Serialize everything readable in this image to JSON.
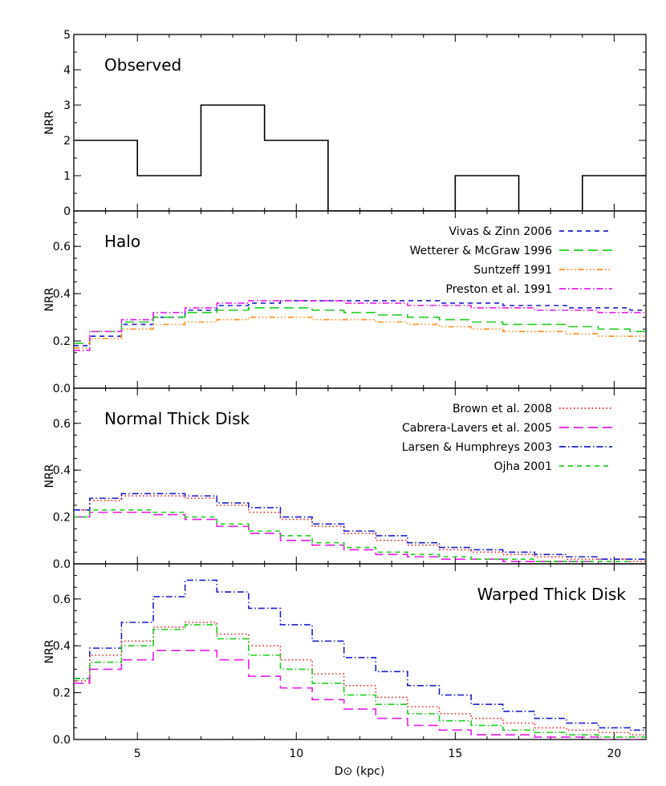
{
  "chart_data": [
    {
      "type": "line",
      "title": "Observed",
      "ylabel": "NRR",
      "xlim": [
        3,
        21
      ],
      "ylim": [
        0,
        5
      ],
      "yticks": [
        "0",
        "1",
        "2",
        "3",
        "4",
        "5"
      ],
      "series": [
        {
          "color": "#000000",
          "dash": "solid",
          "bins_x": [
            3,
            5,
            7,
            9,
            11,
            13,
            15,
            17,
            19,
            21
          ],
          "values": [
            2,
            1,
            3,
            2,
            0,
            0,
            1,
            0,
            1
          ]
        }
      ]
    },
    {
      "type": "line",
      "title": "Halo",
      "ylabel": "NRR",
      "xlim": [
        3,
        21
      ],
      "ylim": [
        0,
        0.75
      ],
      "yticks": [
        "0.0",
        "0.2",
        "0.4",
        "0.6"
      ],
      "legend_position": "top-right",
      "bins_x": [
        3,
        3.5,
        4.5,
        5.5,
        6.5,
        7.5,
        8.5,
        9.5,
        10.5,
        11.5,
        12.5,
        13.5,
        14.5,
        15.5,
        16.5,
        17.5,
        18.5,
        19.5,
        20.5,
        21
      ],
      "series": [
        {
          "name": "Vivas & Zinn 2006",
          "color": "#1f1fcc",
          "dash": "6,5",
          "values": [
            0.18,
            0.22,
            0.27,
            0.3,
            0.33,
            0.35,
            0.36,
            0.37,
            0.37,
            0.37,
            0.37,
            0.37,
            0.36,
            0.36,
            0.35,
            0.35,
            0.34,
            0.34,
            0.33
          ]
        },
        {
          "name": "Wetterer & McGraw 1996",
          "color": "#22cc22",
          "dash": "12,6",
          "values": [
            0.19,
            0.24,
            0.28,
            0.3,
            0.32,
            0.33,
            0.34,
            0.34,
            0.33,
            0.32,
            0.31,
            0.3,
            0.29,
            0.28,
            0.27,
            0.27,
            0.26,
            0.25,
            0.24
          ]
        },
        {
          "name": "Suntzeff 1991",
          "color": "#ff8c1a",
          "dash": "7,3,1.5,3,1.5,3,1.5,3",
          "values": [
            0.17,
            0.21,
            0.25,
            0.27,
            0.28,
            0.29,
            0.3,
            0.3,
            0.29,
            0.29,
            0.28,
            0.27,
            0.26,
            0.25,
            0.24,
            0.24,
            0.23,
            0.22,
            0.22
          ]
        },
        {
          "name": "Preston et al. 1991",
          "color": "#e61ee6",
          "dash": "8,3,1.5,3",
          "values": [
            0.16,
            0.24,
            0.29,
            0.32,
            0.34,
            0.36,
            0.37,
            0.37,
            0.37,
            0.36,
            0.36,
            0.35,
            0.35,
            0.34,
            0.34,
            0.33,
            0.33,
            0.32,
            0.32
          ]
        }
      ]
    },
    {
      "type": "line",
      "title": "Normal Thick Disk",
      "ylabel": "NRR",
      "xlim": [
        3,
        21
      ],
      "ylim": [
        0,
        0.75
      ],
      "yticks": [
        "0.0",
        "0.2",
        "0.4",
        "0.6"
      ],
      "legend_position": "top-right",
      "bins_x": [
        3,
        3.5,
        4.5,
        5.5,
        6.5,
        7.5,
        8.5,
        9.5,
        10.5,
        11.5,
        12.5,
        13.5,
        14.5,
        15.5,
        16.5,
        17.5,
        18.5,
        19.5,
        20.5,
        21
      ],
      "series": [
        {
          "name": "Brown et al. 2008",
          "color": "#e62020",
          "dash": "1.5,3",
          "values": [
            0.23,
            0.27,
            0.29,
            0.29,
            0.28,
            0.25,
            0.22,
            0.19,
            0.16,
            0.13,
            0.1,
            0.08,
            0.06,
            0.05,
            0.04,
            0.03,
            0.02,
            0.02,
            0.01
          ]
        },
        {
          "name": "Cabrera-Lavers et al. 2005",
          "color": "#e61ee6",
          "dash": "12,6",
          "values": [
            0.2,
            0.22,
            0.22,
            0.21,
            0.19,
            0.16,
            0.13,
            0.1,
            0.08,
            0.06,
            0.04,
            0.03,
            0.02,
            0.02,
            0.01,
            0.01,
            0.01,
            0.0,
            0.0
          ]
        },
        {
          "name": "Larsen & Humphreys 2003",
          "color": "#1f1fcc",
          "dash": "8,3,1.5,3",
          "values": [
            0.23,
            0.28,
            0.3,
            0.3,
            0.29,
            0.26,
            0.24,
            0.2,
            0.17,
            0.14,
            0.12,
            0.09,
            0.07,
            0.06,
            0.05,
            0.04,
            0.03,
            0.02,
            0.02
          ]
        },
        {
          "name": "Ojha 2001",
          "color": "#22cc22",
          "dash": "6,5",
          "values": [
            0.2,
            0.23,
            0.23,
            0.22,
            0.2,
            0.17,
            0.14,
            0.12,
            0.09,
            0.07,
            0.05,
            0.04,
            0.03,
            0.02,
            0.02,
            0.01,
            0.01,
            0.01,
            0.0
          ]
        }
      ]
    },
    {
      "type": "line",
      "title": "Warped Thick Disk",
      "ylabel": "NRR",
      "xlabel": "D⊙ (kpc)",
      "xlim": [
        3,
        21
      ],
      "ylim": [
        0,
        0.75
      ],
      "yticks": [
        "0.0",
        "0.2",
        "0.4",
        "0.6"
      ],
      "xticks": [
        "5",
        "10",
        "15",
        "20"
      ],
      "bins_x": [
        3,
        3.5,
        4.5,
        5.5,
        6.5,
        7.5,
        8.5,
        9.5,
        10.5,
        11.5,
        12.5,
        13.5,
        14.5,
        15.5,
        16.5,
        17.5,
        18.5,
        19.5,
        20.5,
        21
      ],
      "series": [
        {
          "color": "#1f1fcc",
          "dash": "8,3,1.5,3",
          "values": [
            0.26,
            0.39,
            0.5,
            0.61,
            0.68,
            0.63,
            0.56,
            0.49,
            0.42,
            0.35,
            0.29,
            0.23,
            0.19,
            0.15,
            0.12,
            0.09,
            0.07,
            0.05,
            0.04
          ]
        },
        {
          "color": "#e62020",
          "dash": "1.5,3",
          "values": [
            0.25,
            0.36,
            0.42,
            0.48,
            0.5,
            0.45,
            0.4,
            0.34,
            0.28,
            0.23,
            0.18,
            0.14,
            0.11,
            0.09,
            0.07,
            0.05,
            0.04,
            0.03,
            0.02
          ]
        },
        {
          "color": "#22cc22",
          "dash": "8,3,1.5,3",
          "values": [
            0.26,
            0.33,
            0.4,
            0.47,
            0.49,
            0.43,
            0.36,
            0.3,
            0.24,
            0.19,
            0.15,
            0.11,
            0.08,
            0.06,
            0.04,
            0.03,
            0.02,
            0.01,
            0.01
          ]
        },
        {
          "color": "#e61ee6",
          "dash": "12,6",
          "values": [
            0.24,
            0.3,
            0.34,
            0.38,
            0.38,
            0.34,
            0.27,
            0.22,
            0.17,
            0.13,
            0.09,
            0.06,
            0.04,
            0.02,
            0.02,
            0.01,
            0.01,
            0.0,
            0.0
          ]
        }
      ]
    }
  ]
}
